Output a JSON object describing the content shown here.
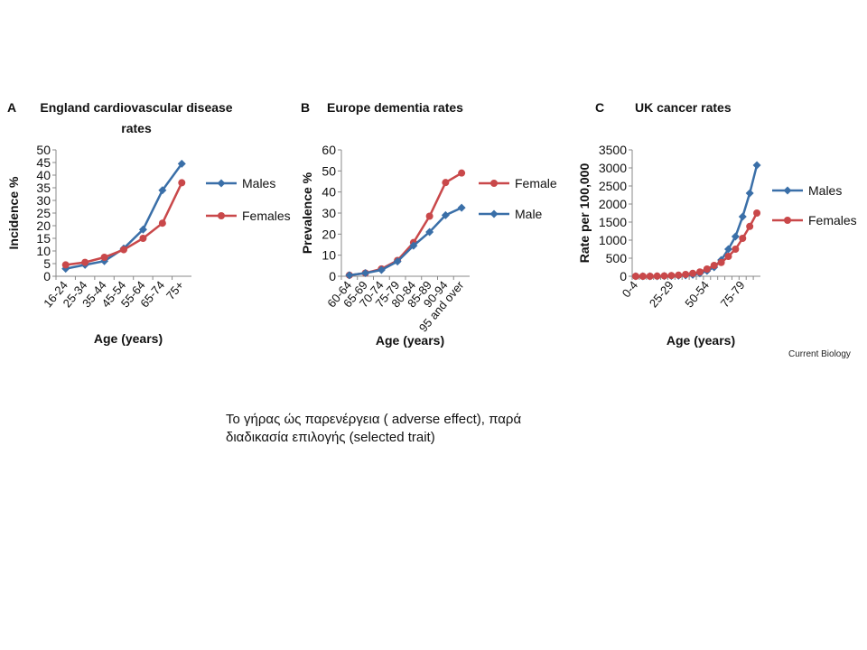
{
  "chart_data": [
    {
      "type": "line",
      "panel": "A",
      "title": "England  cardiovascular disease rates",
      "x_label": "Age (years)",
      "y_label": "Incidence %",
      "categories": [
        "16-24",
        "25-34",
        "35-44",
        "45-54",
        "55-64",
        "65-74",
        "75+"
      ],
      "series": [
        {
          "name": "Males",
          "color": "#3a6fa8",
          "marker": "diamond",
          "values": [
            3,
            4.5,
            6,
            11,
            18.5,
            34,
            44.5
          ]
        },
        {
          "name": "Females",
          "color": "#c9484a",
          "marker": "circle",
          "values": [
            4.5,
            5.5,
            7.5,
            10.5,
            15,
            21,
            37
          ]
        }
      ],
      "ylim": [
        0,
        50
      ],
      "yticks": [
        0,
        5,
        10,
        15,
        20,
        25,
        30,
        35,
        40,
        45,
        50
      ],
      "legend": "right"
    },
    {
      "type": "line",
      "panel": "B",
      "title": "Europe dementia rates",
      "x_label": "Age (years)",
      "y_label": "Prevalence %",
      "categories": [
        "60-64",
        "65-69",
        "70-74",
        "75-79",
        "80-84",
        "85-89",
        "90-94",
        "95 and over"
      ],
      "series": [
        {
          "name": "Female",
          "color": "#c9484a",
          "marker": "circle",
          "values": [
            0.5,
            1.5,
            3.5,
            7.5,
            16,
            28.5,
            44.5,
            49
          ]
        },
        {
          "name": "Male",
          "color": "#3a6fa8",
          "marker": "diamond",
          "values": [
            0.5,
            1.5,
            3,
            7,
            14.5,
            21,
            29,
            32.5
          ]
        }
      ],
      "ylim": [
        0,
        60
      ],
      "yticks": [
        0,
        10,
        20,
        30,
        40,
        50,
        60
      ],
      "legend": "right"
    },
    {
      "type": "line",
      "panel": "C",
      "title": "UK cancer rates",
      "x_label": "Age (years)",
      "y_label": "Rate per 100,000",
      "categories": [
        "0-4",
        null,
        null,
        null,
        null,
        "25-29",
        null,
        null,
        null,
        null,
        "50-54",
        null,
        null,
        null,
        null,
        "75-79",
        null,
        null
      ],
      "series": [
        {
          "name": "Males",
          "color": "#3a6fa8",
          "marker": "diamond",
          "values": [
            0,
            0,
            0,
            0,
            5,
            10,
            15,
            25,
            40,
            80,
            150,
            250,
            450,
            750,
            1100,
            1650,
            2300,
            3075
          ]
        },
        {
          "name": "Females",
          "color": "#c9484a",
          "marker": "circle",
          "values": [
            0,
            0,
            0,
            5,
            10,
            20,
            30,
            50,
            80,
            120,
            200,
            300,
            380,
            550,
            750,
            1050,
            1380,
            1750
          ]
        }
      ],
      "ylim": [
        0,
        3500
      ],
      "yticks": [
        0,
        500,
        1000,
        1500,
        2000,
        2500,
        3000,
        3500
      ],
      "legend": "right"
    }
  ],
  "source": "Current Biology",
  "caption": "Το γήρας ώς παρενέργεια ( adverse effect), παρά διαδικασία επιλογής (selected trait)"
}
